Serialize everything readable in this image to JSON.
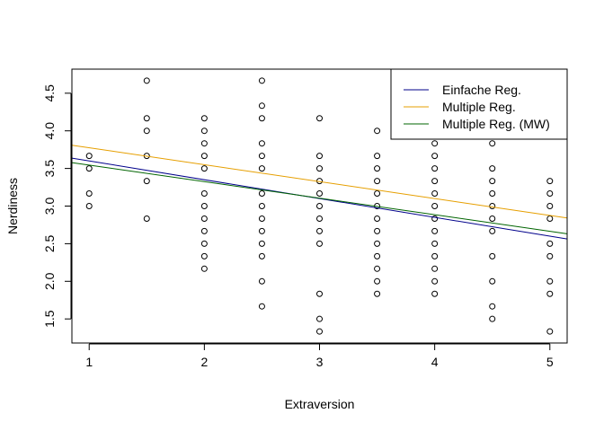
{
  "chart_data": {
    "type": "scatter",
    "xlabel": "Extraversion",
    "ylabel": "Nerdiness",
    "xlim": [
      0.85,
      5.15
    ],
    "ylim": [
      1.18,
      4.82
    ],
    "x_ticks": [
      1,
      2,
      3,
      4,
      5
    ],
    "y_ticks": [
      1.5,
      2.0,
      2.5,
      3.0,
      3.5,
      4.0,
      4.5
    ],
    "y_tick_labels": [
      "1.5",
      "2.0",
      "2.5",
      "3.0",
      "3.5",
      "4.0",
      "4.5"
    ],
    "grid": false,
    "legend_position": "top-right",
    "points": [
      [
        1,
        3.667
      ],
      [
        1,
        3.5
      ],
      [
        1,
        3.167
      ],
      [
        1,
        3.0
      ],
      [
        1.5,
        4.667
      ],
      [
        1.5,
        4.167
      ],
      [
        1.5,
        4.0
      ],
      [
        1.5,
        3.667
      ],
      [
        1.5,
        3.333
      ],
      [
        1.5,
        2.833
      ],
      [
        2,
        4.167
      ],
      [
        2,
        4.0
      ],
      [
        2,
        3.833
      ],
      [
        2,
        3.667
      ],
      [
        2,
        3.5
      ],
      [
        2,
        3.167
      ],
      [
        2,
        3.0
      ],
      [
        2,
        2.833
      ],
      [
        2,
        2.667
      ],
      [
        2,
        2.5
      ],
      [
        2,
        2.333
      ],
      [
        2,
        2.167
      ],
      [
        2.5,
        4.667
      ],
      [
        2.5,
        4.333
      ],
      [
        2.5,
        4.167
      ],
      [
        2.5,
        3.833
      ],
      [
        2.5,
        3.667
      ],
      [
        2.5,
        3.5
      ],
      [
        2.5,
        3.167
      ],
      [
        2.5,
        3.0
      ],
      [
        2.5,
        2.833
      ],
      [
        2.5,
        2.667
      ],
      [
        2.5,
        2.5
      ],
      [
        2.5,
        2.333
      ],
      [
        2.5,
        2.0
      ],
      [
        2.5,
        1.667
      ],
      [
        3,
        4.167
      ],
      [
        3,
        3.667
      ],
      [
        3,
        3.5
      ],
      [
        3,
        3.333
      ],
      [
        3,
        3.167
      ],
      [
        3,
        3.0
      ],
      [
        3,
        2.833
      ],
      [
        3,
        2.667
      ],
      [
        3,
        2.5
      ],
      [
        3,
        1.833
      ],
      [
        3,
        1.5
      ],
      [
        3,
        1.333
      ],
      [
        3.5,
        4.0
      ],
      [
        3.5,
        3.667
      ],
      [
        3.5,
        3.5
      ],
      [
        3.5,
        3.333
      ],
      [
        3.5,
        3.167
      ],
      [
        3.5,
        3.0
      ],
      [
        3.5,
        2.833
      ],
      [
        3.5,
        2.667
      ],
      [
        3.5,
        2.5
      ],
      [
        3.5,
        2.333
      ],
      [
        3.5,
        2.167
      ],
      [
        3.5,
        2.0
      ],
      [
        3.5,
        1.833
      ],
      [
        4,
        3.833
      ],
      [
        4,
        3.667
      ],
      [
        4,
        3.5
      ],
      [
        4,
        3.333
      ],
      [
        4,
        3.167
      ],
      [
        4,
        3.0
      ],
      [
        4,
        2.833
      ],
      [
        4,
        2.667
      ],
      [
        4,
        2.5
      ],
      [
        4,
        2.333
      ],
      [
        4,
        2.167
      ],
      [
        4,
        2.0
      ],
      [
        4,
        1.833
      ],
      [
        4.5,
        3.833
      ],
      [
        4.5,
        3.5
      ],
      [
        4.5,
        3.333
      ],
      [
        4.5,
        3.167
      ],
      [
        4.5,
        3.0
      ],
      [
        4.5,
        2.833
      ],
      [
        4.5,
        2.667
      ],
      [
        4.5,
        2.333
      ],
      [
        4.5,
        2.0
      ],
      [
        4.5,
        1.667
      ],
      [
        4.5,
        1.5
      ],
      [
        5,
        3.333
      ],
      [
        5,
        3.167
      ],
      [
        5,
        3.0
      ],
      [
        5,
        2.833
      ],
      [
        5,
        2.5
      ],
      [
        5,
        2.333
      ],
      [
        5,
        2.0
      ],
      [
        5,
        1.833
      ],
      [
        5,
        1.333
      ]
    ],
    "lines": [
      {
        "name": "Einfache Reg.",
        "color": "#00008B",
        "intercept": 3.85,
        "slope": -0.25
      },
      {
        "name": "Multiple Reg.",
        "color": "#E69F00",
        "intercept": 4.0,
        "slope": -0.225
      },
      {
        "name": "Multiple Reg. (MW)",
        "color": "#006400",
        "intercept": 3.765,
        "slope": -0.22
      }
    ]
  }
}
